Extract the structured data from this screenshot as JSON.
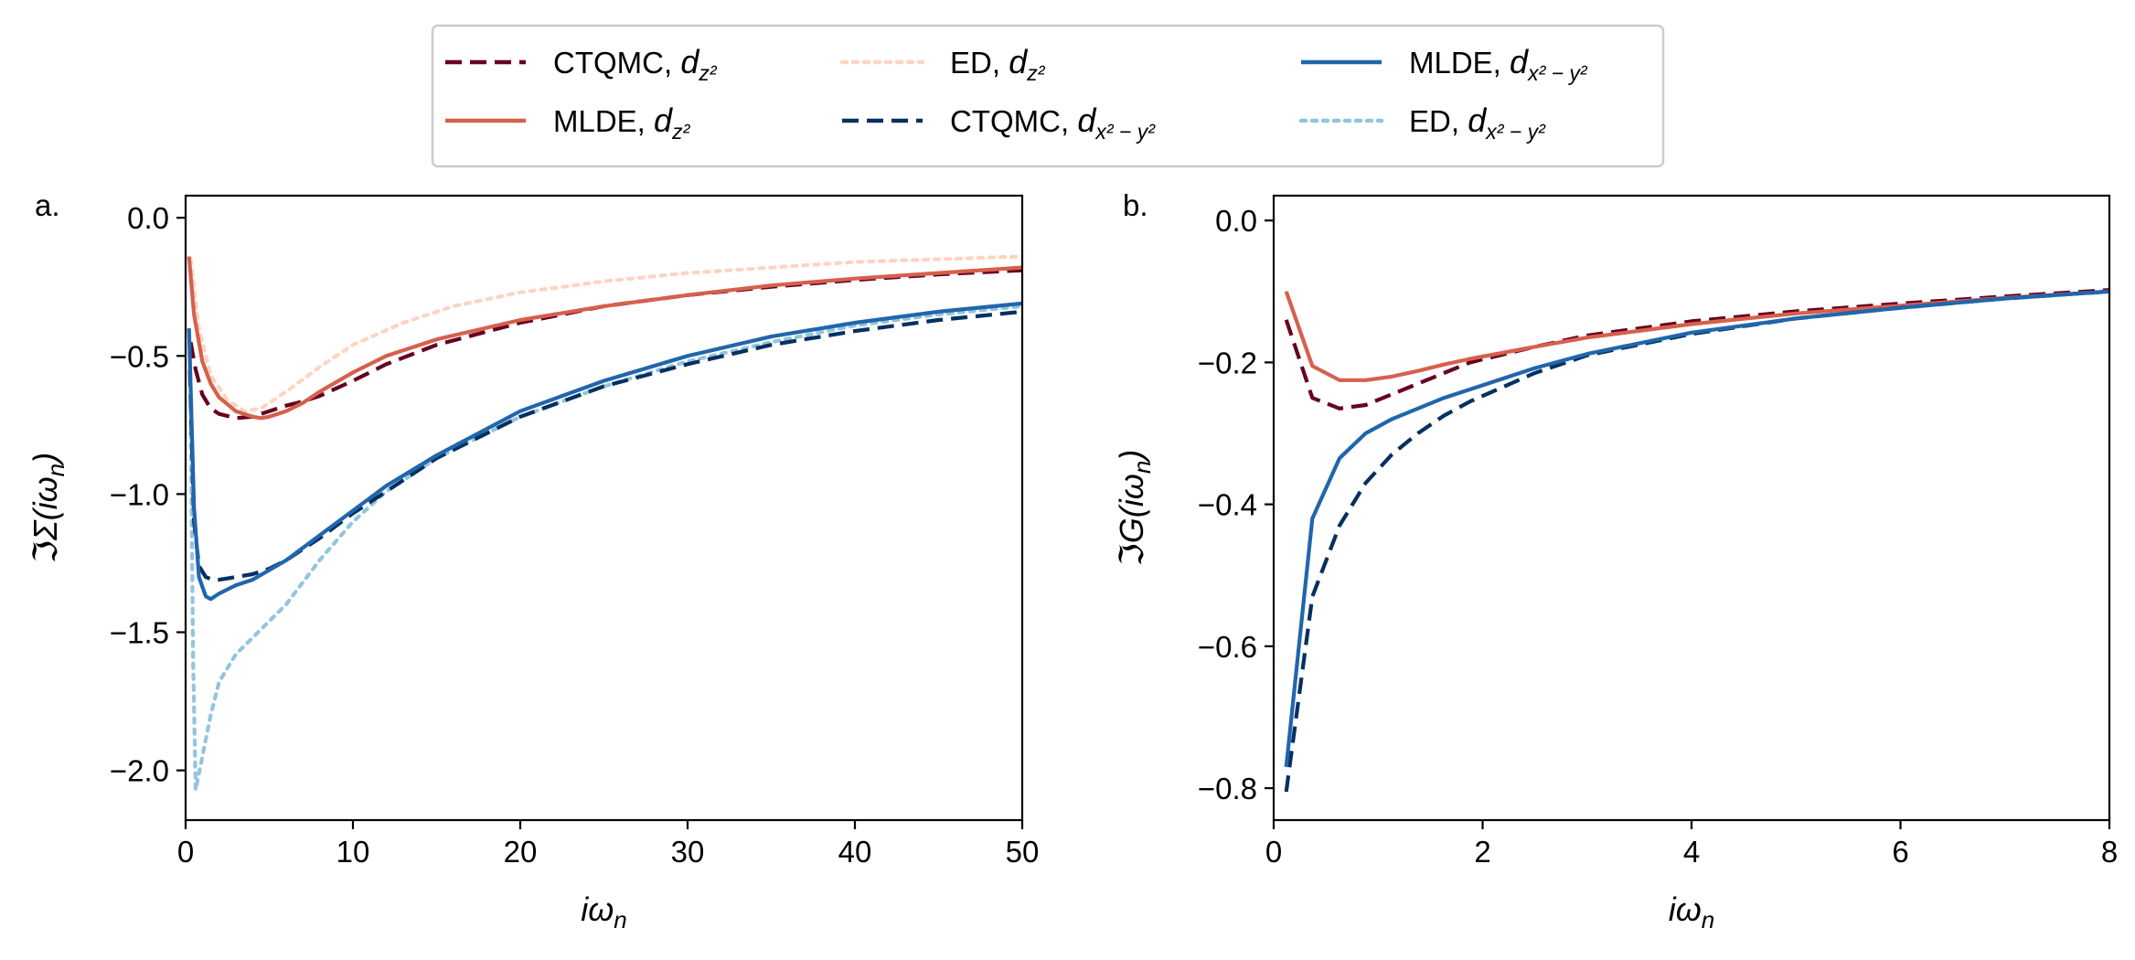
{
  "chart_data": [
    {
      "type": "line",
      "panel_label": "a.",
      "xlabel": "iωn",
      "ylabel": "ℑΣ(iωn)",
      "xlim": [
        0,
        50
      ],
      "ylim": [
        -2.18,
        0.08
      ],
      "xticks": [
        0,
        10,
        20,
        30,
        40,
        50
      ],
      "xtick_labels": [
        "0",
        "10",
        "20",
        "30",
        "40",
        "50"
      ],
      "yticks": [
        0.0,
        -0.5,
        -1.0,
        -1.5,
        -2.0
      ],
      "ytick_labels": [
        "0.0",
        "−0.5",
        "−1.0",
        "−1.5",
        "−2.0"
      ],
      "series": [
        {
          "name": "ED, dz2",
          "color": "#fdd4c2",
          "style": "dotted",
          "x": [
            0.3,
            0.8,
            1.5,
            2.5,
            3.5,
            4.5,
            6,
            8,
            10,
            13,
            16,
            20,
            25,
            30,
            35,
            40,
            45,
            50
          ],
          "y": [
            -0.15,
            -0.4,
            -0.57,
            -0.66,
            -0.7,
            -0.69,
            -0.63,
            -0.54,
            -0.46,
            -0.38,
            -0.32,
            -0.27,
            -0.23,
            -0.2,
            -0.18,
            -0.16,
            -0.15,
            -0.14
          ]
        },
        {
          "name": "CTQMC, dz2",
          "color": "#67001f",
          "style": "dashed",
          "x": [
            0.3,
            0.6,
            1,
            1.5,
            2,
            3,
            4,
            5,
            6,
            7,
            8,
            10,
            12,
            15,
            20,
            25,
            30,
            35,
            40,
            45,
            50
          ],
          "y": [
            -0.45,
            -0.55,
            -0.64,
            -0.69,
            -0.71,
            -0.725,
            -0.72,
            -0.7,
            -0.68,
            -0.665,
            -0.645,
            -0.59,
            -0.53,
            -0.46,
            -0.38,
            -0.32,
            -0.28,
            -0.25,
            -0.225,
            -0.205,
            -0.19
          ]
        },
        {
          "name": "MLDE, dz2",
          "color": "#d6604d",
          "style": "solid",
          "x": [
            0.2,
            0.5,
            1,
            1.5,
            2,
            3,
            4,
            4.5,
            5,
            6,
            7,
            8,
            10,
            12,
            15,
            20,
            25,
            30,
            35,
            40,
            45,
            50
          ],
          "y": [
            -0.14,
            -0.35,
            -0.52,
            -0.6,
            -0.65,
            -0.7,
            -0.72,
            -0.725,
            -0.72,
            -0.7,
            -0.67,
            -0.63,
            -0.56,
            -0.5,
            -0.44,
            -0.37,
            -0.32,
            -0.28,
            -0.245,
            -0.22,
            -0.2,
            -0.18
          ]
        },
        {
          "name": "ED, dx2-y2",
          "color": "#92c5de",
          "style": "dotted",
          "x": [
            0.3,
            0.45,
            0.6,
            1,
            1.5,
            2,
            3,
            4,
            6,
            8,
            10,
            12,
            15,
            20,
            25,
            30,
            35,
            40,
            45,
            50
          ],
          "y": [
            -0.7,
            -1.6,
            -2.07,
            -1.95,
            -1.8,
            -1.68,
            -1.58,
            -1.52,
            -1.4,
            -1.24,
            -1.1,
            -0.99,
            -0.87,
            -0.72,
            -0.61,
            -0.52,
            -0.45,
            -0.39,
            -0.35,
            -0.32
          ]
        },
        {
          "name": "CTQMC, dx2-y2",
          "color": "#053061",
          "style": "dashed",
          "x": [
            0.25,
            0.5,
            0.8,
            1.2,
            1.6,
            2,
            3,
            4,
            5,
            6,
            8,
            10,
            12,
            15,
            20,
            25,
            30,
            35,
            40,
            45,
            50
          ],
          "y": [
            -0.55,
            -1.1,
            -1.26,
            -1.3,
            -1.31,
            -1.31,
            -1.3,
            -1.29,
            -1.27,
            -1.24,
            -1.16,
            -1.07,
            -0.99,
            -0.87,
            -0.72,
            -0.61,
            -0.53,
            -0.46,
            -0.41,
            -0.37,
            -0.34
          ]
        },
        {
          "name": "MLDE, dx2-y2",
          "color": "#2166ac",
          "style": "solid",
          "x": [
            0.2,
            0.5,
            0.8,
            1.2,
            1.5,
            2,
            3,
            4,
            6,
            8,
            10,
            12,
            15,
            20,
            25,
            30,
            35,
            40,
            45,
            50
          ],
          "y": [
            -0.4,
            -1.05,
            -1.3,
            -1.37,
            -1.38,
            -1.36,
            -1.33,
            -1.31,
            -1.24,
            -1.15,
            -1.06,
            -0.97,
            -0.86,
            -0.7,
            -0.59,
            -0.5,
            -0.43,
            -0.38,
            -0.34,
            -0.31
          ]
        }
      ]
    },
    {
      "type": "line",
      "panel_label": "b.",
      "xlabel": "iωn",
      "ylabel": "ℑG(iωn)",
      "xlim": [
        0,
        8
      ],
      "ylim": [
        -0.845,
        0.035
      ],
      "xticks": [
        0,
        2,
        4,
        6,
        8
      ],
      "xtick_labels": [
        "0",
        "2",
        "4",
        "6",
        "8"
      ],
      "yticks": [
        0.0,
        -0.2,
        -0.4,
        -0.6,
        -0.8
      ],
      "ytick_labels": [
        "0.0",
        "−0.2",
        "−0.4",
        "−0.6",
        "−0.8"
      ],
      "series": [
        {
          "name": "CTQMC, dz2",
          "color": "#67001f",
          "style": "dashed",
          "x": [
            0.12,
            0.37,
            0.63,
            0.88,
            1.13,
            1.38,
            1.63,
            1.88,
            2.5,
            3,
            4,
            5,
            6,
            7,
            8
          ],
          "y": [
            -0.14,
            -0.25,
            -0.265,
            -0.26,
            -0.245,
            -0.23,
            -0.215,
            -0.2,
            -0.178,
            -0.162,
            -0.142,
            -0.128,
            -0.117,
            -0.107,
            -0.098
          ]
        },
        {
          "name": "MLDE, dz2",
          "color": "#d6604d",
          "style": "solid",
          "x": [
            0.12,
            0.37,
            0.63,
            0.88,
            1.13,
            1.38,
            1.63,
            1.88,
            2.5,
            3,
            4,
            5,
            6,
            7,
            8
          ],
          "y": [
            -0.1,
            -0.205,
            -0.225,
            -0.225,
            -0.22,
            -0.212,
            -0.203,
            -0.195,
            -0.178,
            -0.165,
            -0.146,
            -0.131,
            -0.12,
            -0.109,
            -0.1
          ]
        },
        {
          "name": "CTQMC, dx2-y2",
          "color": "#053061",
          "style": "dashed",
          "x": [
            0.12,
            0.37,
            0.63,
            0.88,
            1.13,
            1.38,
            1.63,
            1.88,
            2.5,
            3,
            4,
            5,
            6,
            7,
            8
          ],
          "y": [
            -0.805,
            -0.53,
            -0.43,
            -0.37,
            -0.33,
            -0.3,
            -0.275,
            -0.255,
            -0.215,
            -0.19,
            -0.16,
            -0.138,
            -0.123,
            -0.11,
            -0.1
          ]
        },
        {
          "name": "MLDE, dx2-y2",
          "color": "#2166ac",
          "style": "solid",
          "x": [
            0.12,
            0.37,
            0.63,
            0.88,
            1.13,
            1.38,
            1.63,
            1.88,
            2.5,
            3,
            4,
            5,
            6,
            7,
            8
          ],
          "y": [
            -0.77,
            -0.42,
            -0.335,
            -0.3,
            -0.28,
            -0.265,
            -0.25,
            -0.238,
            -0.208,
            -0.188,
            -0.158,
            -0.138,
            -0.123,
            -0.11,
            -0.1
          ]
        }
      ]
    }
  ],
  "legend": {
    "placement": "top-center",
    "entries": [
      {
        "label_main": "CTQMC, ",
        "sym": "d",
        "sub": "z²",
        "color": "#67001f",
        "style": "dashed"
      },
      {
        "label_main": "ED, ",
        "sym": "d",
        "sub": "z²",
        "color": "#fdd4c2",
        "style": "dotted"
      },
      {
        "label_main": "MLDE, ",
        "sym": "d",
        "sub": "x² − y²",
        "color": "#2166ac",
        "style": "solid"
      },
      {
        "label_main": "MLDE, ",
        "sym": "d",
        "sub": "z²",
        "color": "#d6604d",
        "style": "solid"
      },
      {
        "label_main": "CTQMC, ",
        "sym": "d",
        "sub": "x² − y²",
        "color": "#053061",
        "style": "dashed"
      },
      {
        "label_main": "ED, ",
        "sym": "d",
        "sub": "x² − y²",
        "color": "#92c5de",
        "style": "dotted"
      }
    ]
  }
}
